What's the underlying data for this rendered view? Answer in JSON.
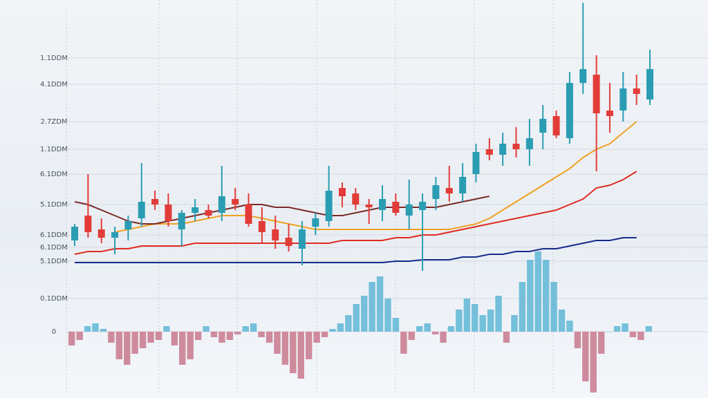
{
  "chart_data": {
    "type": "candlestick",
    "ylim": [
      -24,
      120
    ],
    "yticks": [
      {
        "value": 99,
        "label": "1.1DDM"
      },
      {
        "value": 89.5,
        "label": "4.1DDM"
      },
      {
        "value": 76,
        "label": "2.7ZDM"
      },
      {
        "value": 66,
        "label": "1.1DDM"
      },
      {
        "value": 57,
        "label": "6.1DDM"
      },
      {
        "value": 46,
        "label": "5.1DDM"
      },
      {
        "value": 35,
        "label": "6.1DDM"
      },
      {
        "value": 30.5,
        "label": "6.1DDM"
      },
      {
        "value": 25.5,
        "label": "5.1DDM"
      },
      {
        "value": 12,
        "label": "0.1DDM"
      },
      0
    ],
    "grid": true,
    "up_color": "#2a9db3",
    "down_color": "#e23c38",
    "ohlc": [
      [
        33,
        39,
        31,
        38
      ],
      [
        42,
        57,
        34,
        36
      ],
      [
        37,
        41,
        32,
        34
      ],
      [
        34,
        38,
        28,
        36
      ],
      [
        37,
        42,
        33,
        40
      ],
      [
        41,
        61,
        38,
        47
      ],
      [
        48,
        51,
        44,
        46
      ],
      [
        46,
        50,
        38,
        40
      ],
      [
        37,
        44,
        31,
        43
      ],
      [
        43,
        48,
        40,
        45
      ],
      [
        44,
        46,
        41,
        42
      ],
      [
        43,
        60,
        40,
        49
      ],
      [
        48,
        52,
        44,
        46
      ],
      [
        46,
        50,
        38,
        39
      ],
      [
        40,
        45,
        32,
        36
      ],
      [
        37,
        42,
        30,
        33
      ],
      [
        34,
        39,
        29,
        31
      ],
      [
        30,
        40,
        24,
        37
      ],
      [
        38,
        43,
        35,
        41
      ],
      [
        40,
        60,
        38,
        51
      ],
      [
        52,
        54,
        45,
        49
      ],
      [
        50,
        52,
        44,
        46
      ],
      [
        46,
        48,
        39,
        45
      ],
      [
        44,
        53,
        40,
        48
      ],
      [
        47,
        50,
        42,
        43
      ],
      [
        42,
        55,
        37,
        46
      ],
      [
        44,
        50,
        22,
        47
      ],
      [
        48,
        56,
        44,
        53
      ],
      [
        52,
        60,
        47,
        50
      ],
      [
        50,
        61,
        47,
        56
      ],
      [
        57,
        68,
        54,
        65
      ],
      [
        66,
        70,
        62,
        64
      ],
      [
        64,
        72,
        60,
        68
      ],
      [
        68,
        74,
        63,
        66
      ],
      [
        66,
        77,
        60,
        70
      ],
      [
        72,
        82,
        66,
        77
      ],
      [
        78,
        80,
        70,
        71
      ],
      [
        70,
        94,
        68,
        90
      ],
      [
        90,
        119,
        86,
        95
      ],
      [
        93,
        100,
        58,
        79
      ],
      [
        80,
        90,
        72,
        78
      ],
      [
        80,
        94,
        76,
        88
      ],
      [
        88,
        93,
        82,
        86
      ],
      [
        84,
        102,
        82,
        95
      ]
    ],
    "lines": [
      {
        "color": "#f0a020",
        "values": [
          null,
          null,
          null,
          36,
          37,
          38,
          39,
          39,
          39,
          40,
          41,
          42,
          42,
          42,
          41,
          40,
          39,
          38,
          37,
          37,
          37,
          37,
          37,
          37,
          37,
          37,
          37,
          37,
          37,
          38,
          39,
          41,
          44,
          47,
          50,
          53,
          56,
          59,
          63,
          66,
          68,
          72,
          76,
          null
        ]
      },
      {
        "color": "#7a2a28",
        "values": [
          47,
          46,
          44,
          42,
          40,
          39,
          39,
          40,
          41,
          42,
          43,
          44,
          45,
          46,
          46,
          45,
          45,
          44,
          43,
          42,
          42,
          43,
          44,
          45,
          45,
          45,
          45,
          45,
          46,
          47,
          48,
          49,
          null,
          null,
          null,
          null,
          null,
          null,
          null,
          null,
          null,
          null,
          null,
          null
        ]
      },
      {
        "color": "#e02a20",
        "values": [
          28,
          29,
          29,
          30,
          30,
          31,
          31,
          31,
          31,
          32,
          32,
          32,
          32,
          32,
          32,
          32,
          32,
          32,
          32,
          32,
          33,
          33,
          33,
          33,
          34,
          34,
          35,
          35,
          36,
          37,
          38,
          39,
          40,
          41,
          42,
          43,
          44,
          46,
          48,
          52,
          53,
          55,
          58,
          null
        ]
      },
      {
        "color": "#142a8a",
        "values": [
          25,
          25,
          25,
          25,
          25,
          25,
          25,
          25,
          25,
          25,
          25,
          25,
          25,
          25,
          25,
          25,
          25,
          25,
          25,
          25,
          25,
          25,
          25,
          25,
          25.5,
          25.5,
          26,
          26,
          26,
          27,
          27,
          28,
          28,
          29,
          29,
          30,
          30,
          31,
          32,
          33,
          33,
          34,
          34,
          null
        ]
      }
    ],
    "histogram": {
      "pos_color": "#5fb6d6",
      "neg_color": "#c9788e",
      "values": [
        -5,
        -3,
        2,
        3,
        1,
        -4,
        -10,
        -12,
        -8,
        -6,
        -4,
        -3,
        2,
        -5,
        -12,
        -10,
        -3,
        2,
        -2,
        -4,
        -3,
        -1,
        2,
        3,
        -2,
        -4,
        -8,
        -12,
        -15,
        -17,
        -10,
        -4,
        -2,
        1,
        3,
        6,
        10,
        13,
        18,
        20,
        12,
        5,
        -8,
        -3,
        2,
        3,
        -1,
        -4,
        2,
        8,
        12,
        10,
        6,
        8,
        13,
        -4,
        6,
        18,
        26,
        29,
        26,
        18,
        8,
        4,
        -6,
        -18,
        -22,
        -8,
        0,
        2,
        3,
        -2,
        -3,
        2
      ]
    }
  }
}
